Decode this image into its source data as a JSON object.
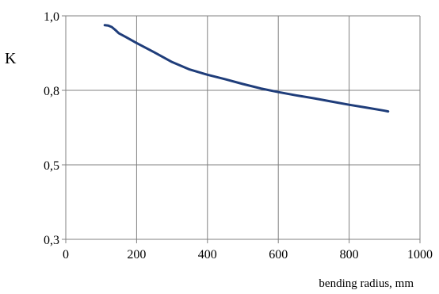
{
  "chart_data": {
    "type": "line",
    "title": "",
    "xlabel": "bending radius, mm",
    "ylabel": "K",
    "xlim": [
      0,
      1000
    ],
    "ylim": [
      0.3,
      1.0
    ],
    "x_ticks": [
      0,
      200,
      400,
      600,
      800,
      1000
    ],
    "x_tick_labels": [
      "0",
      "200",
      "400",
      "600",
      "800",
      "1000"
    ],
    "y_ticks": [
      0.3,
      0.5,
      0.8,
      1.0
    ],
    "y_tick_labels": [
      "0,3",
      "0,5",
      "0,8",
      "1,0"
    ],
    "grid": true,
    "legend": "none",
    "series": [
      {
        "color": "#1f3d7a",
        "x": [
          110,
          120,
          130,
          140,
          150,
          170,
          200,
          250,
          300,
          350,
          400,
          450,
          500,
          550,
          600,
          650,
          700,
          750,
          800,
          850,
          900,
          910
        ],
        "y": [
          0.975,
          0.974,
          0.97,
          0.962,
          0.953,
          0.943,
          0.927,
          0.902,
          0.876,
          0.856,
          0.842,
          0.83,
          0.817,
          0.805,
          0.793,
          0.78,
          0.768,
          0.755,
          0.742,
          0.73,
          0.718,
          0.715
        ]
      }
    ]
  }
}
